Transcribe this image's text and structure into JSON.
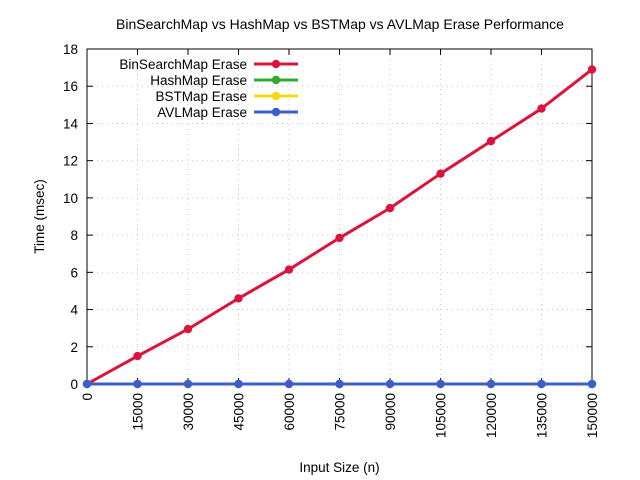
{
  "chart_data": {
    "type": "line",
    "title": "BinSearchMap vs HashMap vs BSTMap vs AVLMap Erase Performance",
    "xlabel": "Input Size (n)",
    "ylabel": "Time (msec)",
    "x": [
      0,
      15000,
      30000,
      45000,
      60000,
      75000,
      90000,
      105000,
      120000,
      135000,
      150000
    ],
    "x_tick_labels": [
      "0",
      "15000",
      "30000",
      "45000",
      "60000",
      "75000",
      "90000",
      "105000",
      "120000",
      "135000",
      "150000"
    ],
    "y_ticks": [
      0,
      2,
      4,
      6,
      8,
      10,
      12,
      14,
      16,
      18
    ],
    "y_tick_labels": [
      "0",
      "2",
      "4",
      "6",
      "8",
      "10",
      "12",
      "14",
      "16",
      "18"
    ],
    "xlim": [
      0,
      150000
    ],
    "ylim": [
      0,
      18
    ],
    "grid": true,
    "legend_position": "top-left",
    "series": [
      {
        "name": "BinSearchMap Erase",
        "color": "#dc143c",
        "values": [
          0,
          1.5,
          2.95,
          4.6,
          6.15,
          7.85,
          9.45,
          11.3,
          13.05,
          14.8,
          16.9
        ]
      },
      {
        "name": "HashMap Erase",
        "color": "#33aa33",
        "values": [
          0,
          0,
          0,
          0,
          0,
          0,
          0,
          0,
          0,
          0,
          0
        ]
      },
      {
        "name": "BSTMap Erase",
        "color": "#f0dc14",
        "values": [
          0,
          0,
          0,
          0,
          0,
          0,
          0,
          0,
          0,
          0,
          0
        ]
      },
      {
        "name": "AVLMap Erase",
        "color": "#3a5fcd",
        "values": [
          0,
          0,
          0,
          0,
          0,
          0,
          0,
          0,
          0,
          0,
          0
        ]
      }
    ]
  }
}
